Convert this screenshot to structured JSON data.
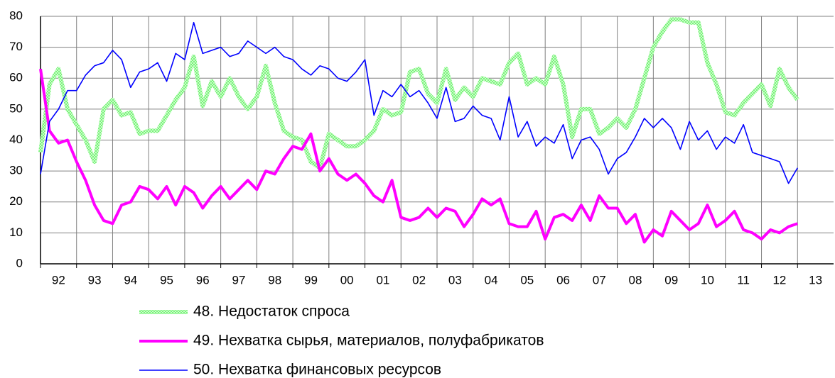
{
  "chart_data": {
    "type": "line",
    "x": [
      1992,
      1992.25,
      1992.5,
      1992.75,
      1993,
      1993.25,
      1993.5,
      1993.75,
      1994,
      1994.25,
      1994.5,
      1994.75,
      1995,
      1995.25,
      1995.5,
      1995.75,
      1996,
      1996.25,
      1996.5,
      1996.75,
      1997,
      1997.25,
      1997.5,
      1997.75,
      1998,
      1998.25,
      1998.5,
      1998.75,
      1999,
      1999.25,
      1999.5,
      1999.75,
      2000,
      2000.25,
      2000.5,
      2000.75,
      2001,
      2001.25,
      2001.5,
      2001.75,
      2002,
      2002.25,
      2002.5,
      2002.75,
      2003,
      2003.25,
      2003.5,
      2003.75,
      2004,
      2004.25,
      2004.5,
      2004.75,
      2005,
      2005.25,
      2005.5,
      2005.75,
      2006,
      2006.25,
      2006.5,
      2006.75,
      2007,
      2007.25,
      2007.5,
      2007.75,
      2008,
      2008.25,
      2008.5,
      2008.75,
      2009,
      2009.25,
      2009.5,
      2009.75,
      2010,
      2010.25,
      2010.5,
      2010.75,
      2011,
      2011.25,
      2011.5,
      2011.75,
      2012,
      2012.25,
      2012.5,
      2012.75,
      2013
    ],
    "series": [
      {
        "name": "48. Недостаток спроса",
        "color": "#7cf07c",
        "width": 6,
        "values": [
          36,
          58,
          63,
          50,
          45,
          40,
          33,
          50,
          53,
          48,
          49,
          42,
          43,
          43,
          48,
          53,
          57,
          67,
          51,
          59,
          54,
          60,
          54,
          50,
          54,
          64,
          52,
          43,
          41,
          40,
          33,
          31,
          42,
          40,
          38,
          38,
          40,
          43,
          50,
          48,
          49,
          62,
          63,
          55,
          52,
          63,
          53,
          57,
          54,
          60,
          59,
          58,
          65,
          68,
          58,
          60,
          58,
          67,
          58,
          41,
          50,
          50,
          42,
          44,
          47,
          44,
          50,
          60,
          70,
          75,
          79,
          79,
          78,
          78,
          65,
          58,
          49,
          48,
          52,
          55,
          58,
          51,
          63,
          57,
          53
        ]
      },
      {
        "name": "49. Нехватка сырья, материалов, полуфабрикатов",
        "color": "#ff00ff",
        "width": 4,
        "values": [
          63,
          43,
          39,
          40,
          33,
          27,
          19,
          14,
          13,
          19,
          20,
          25,
          24,
          21,
          25,
          19,
          25,
          23,
          18,
          22,
          25,
          21,
          24,
          27,
          24,
          30,
          29,
          34,
          38,
          37,
          42,
          30,
          34,
          29,
          27,
          29,
          26,
          22,
          20,
          27,
          15,
          14,
          15,
          18,
          15,
          18,
          17,
          12,
          16,
          21,
          19,
          21,
          13,
          12,
          12,
          17,
          8,
          15,
          16,
          14,
          19,
          14,
          22,
          18,
          18,
          13,
          16,
          7,
          11,
          9,
          17,
          14,
          11,
          13,
          19,
          12,
          14,
          17,
          11,
          10,
          8,
          11,
          10,
          12,
          13
        ]
      },
      {
        "name": "50. Нехватка финансовых ресурсов",
        "color": "#0000ff",
        "width": 1.6,
        "values": [
          29,
          46,
          50,
          56,
          56,
          61,
          64,
          65,
          69,
          66,
          57,
          62,
          63,
          65,
          59,
          68,
          66,
          78,
          68,
          69,
          70,
          67,
          68,
          72,
          70,
          68,
          70,
          67,
          66,
          63,
          61,
          64,
          63,
          60,
          59,
          62,
          66,
          48,
          56,
          54,
          58,
          54,
          56,
          52,
          47,
          57,
          46,
          47,
          51,
          48,
          47,
          40,
          54,
          41,
          46,
          38,
          41,
          39,
          45,
          34,
          40,
          41,
          37,
          29,
          34,
          36,
          41,
          47,
          44,
          47,
          44,
          37,
          46,
          40,
          43,
          37,
          41,
          39,
          45,
          36,
          35,
          34,
          33,
          26,
          31
        ]
      }
    ],
    "xlim": [
      1992,
      2014
    ],
    "xticks": [
      {
        "value": 1992,
        "label": "92"
      },
      {
        "value": 1993,
        "label": "93"
      },
      {
        "value": 1994,
        "label": "94"
      },
      {
        "value": 1995,
        "label": "95"
      },
      {
        "value": 1996,
        "label": "96"
      },
      {
        "value": 1997,
        "label": "97"
      },
      {
        "value": 1998,
        "label": "98"
      },
      {
        "value": 1999,
        "label": "99"
      },
      {
        "value": 2000,
        "label": "00"
      },
      {
        "value": 2001,
        "label": "01"
      },
      {
        "value": 2002,
        "label": "02"
      },
      {
        "value": 2003,
        "label": "03"
      },
      {
        "value": 2004,
        "label": "04"
      },
      {
        "value": 2005,
        "label": "05"
      },
      {
        "value": 2006,
        "label": "06"
      },
      {
        "value": 2007,
        "label": "07"
      },
      {
        "value": 2008,
        "label": "08"
      },
      {
        "value": 2009,
        "label": "09"
      },
      {
        "value": 2010,
        "label": "10"
      },
      {
        "value": 2011,
        "label": "11"
      },
      {
        "value": 2012,
        "label": "12"
      },
      {
        "value": 2013,
        "label": "13"
      }
    ],
    "ylim": [
      0,
      80
    ],
    "yticks": [
      0,
      10,
      20,
      30,
      40,
      50,
      60,
      70,
      80
    ],
    "grid": true,
    "legend": "bottom"
  }
}
